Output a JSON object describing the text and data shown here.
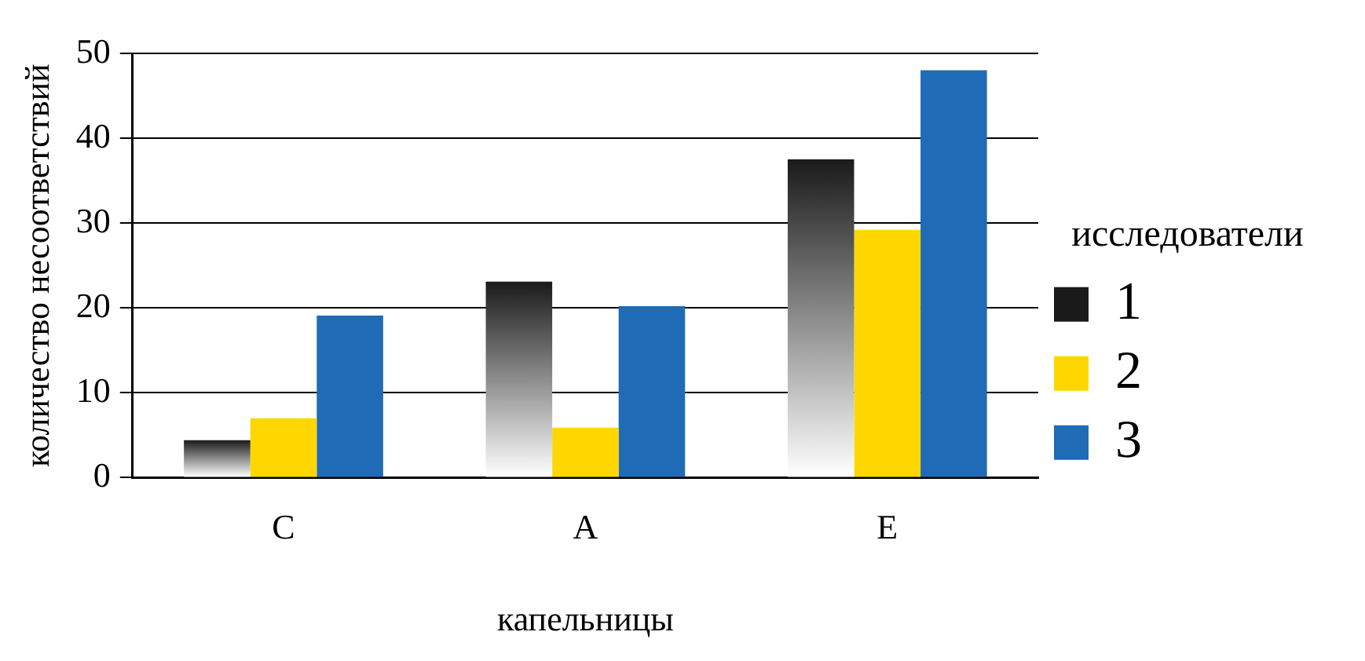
{
  "chart_data": {
    "type": "bar",
    "xlabel": "капельницы",
    "ylabel": "количество несоответствий",
    "legend_title": "исследователи",
    "legend": "right",
    "categories": [
      "C",
      "A",
      "E"
    ],
    "series": [
      {
        "name": "1",
        "color": "#1a1a1a",
        "values": [
          4.4,
          23.1,
          37.5
        ]
      },
      {
        "name": "2",
        "color": "#ffd700",
        "values": [
          7.0,
          5.9,
          29.2
        ]
      },
      {
        "name": "3",
        "color": "#1f6bb5",
        "values": [
          19.1,
          20.2,
          48
        ]
      }
    ],
    "ylim": [
      0,
      50
    ],
    "yticks": [
      0,
      10,
      20,
      30,
      40,
      50
    ],
    "grid": "y"
  }
}
